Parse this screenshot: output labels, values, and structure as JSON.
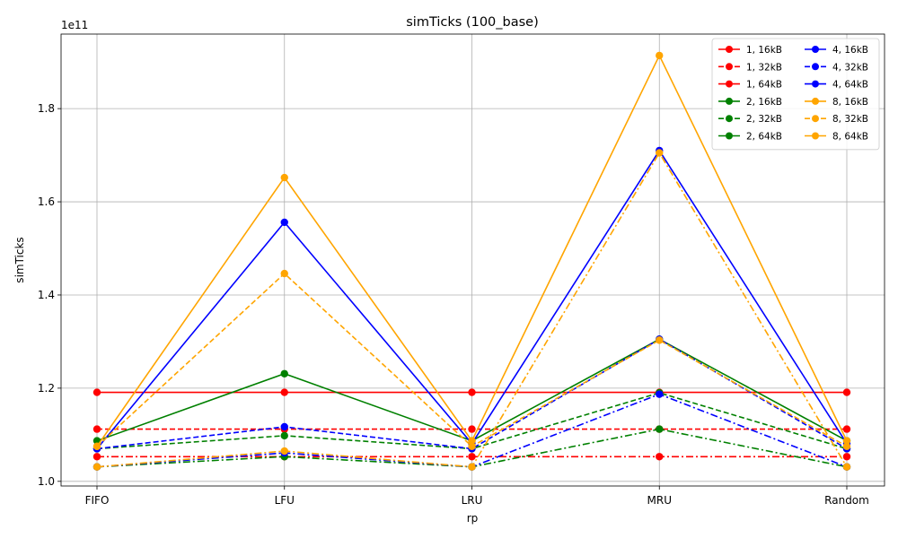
{
  "chart_data": {
    "type": "line",
    "title": "simTicks (100_base)",
    "xlabel": "rp",
    "ylabel": "simTicks",
    "y_offset_text": "1e11",
    "y_scale_factor": 100000000000.0,
    "categories": [
      "FIFO",
      "LFU",
      "LRU",
      "MRU",
      "Random"
    ],
    "ylim": [
      0.99,
      1.96
    ],
    "yticks": [
      1.0,
      1.2,
      1.4,
      1.6,
      1.8
    ],
    "ytick_labels": [
      "1.0",
      "1.2",
      "1.4",
      "1.6",
      "1.8"
    ],
    "grid": true,
    "legend_position": "top-right",
    "legend_columns": 2,
    "series": [
      {
        "name": "1, 16kB",
        "color": "#ff0000",
        "dash": "solid",
        "values": [
          1.191,
          1.191,
          1.191,
          1.191,
          1.191
        ]
      },
      {
        "name": "1, 32kB",
        "color": "#ff0000",
        "dash": "dashed",
        "values": [
          1.112,
          1.112,
          1.112,
          1.112,
          1.112
        ]
      },
      {
        "name": "1, 64kB",
        "color": "#ff0000",
        "dash": "dashdot",
        "values": [
          1.053,
          1.053,
          1.053,
          1.053,
          1.053
        ]
      },
      {
        "name": "2, 16kB",
        "color": "#008000",
        "dash": "solid",
        "values": [
          1.087,
          1.231,
          1.087,
          1.305,
          1.087
        ]
      },
      {
        "name": "2, 32kB",
        "color": "#008000",
        "dash": "dashed",
        "values": [
          1.07,
          1.098,
          1.07,
          1.19,
          1.07
        ]
      },
      {
        "name": "2, 64kB",
        "color": "#008000",
        "dash": "dashdot",
        "values": [
          1.031,
          1.053,
          1.031,
          1.112,
          1.031
        ]
      },
      {
        "name": "4, 16kB",
        "color": "#0000ff",
        "dash": "solid",
        "values": [
          1.07,
          1.556,
          1.081,
          1.71,
          1.081
        ]
      },
      {
        "name": "4, 32kB",
        "color": "#0000ff",
        "dash": "dashed",
        "values": [
          1.07,
          1.117,
          1.07,
          1.305,
          1.07
        ]
      },
      {
        "name": "4, 64kB",
        "color": "#0000ff",
        "dash": "dashdot",
        "values": [
          1.031,
          1.061,
          1.031,
          1.187,
          1.031
        ]
      },
      {
        "name": "8, 16kB",
        "color": "#ffa500",
        "dash": "solid",
        "values": [
          1.075,
          1.652,
          1.087,
          1.914,
          1.087
        ]
      },
      {
        "name": "8, 32kB",
        "color": "#ffa500",
        "dash": "dashed",
        "values": [
          1.075,
          1.446,
          1.075,
          1.303,
          1.075
        ]
      },
      {
        "name": "8, 64kB",
        "color": "#ffa500",
        "dash": "dashdot",
        "values": [
          1.031,
          1.065,
          1.031,
          1.705,
          1.031
        ]
      }
    ]
  }
}
